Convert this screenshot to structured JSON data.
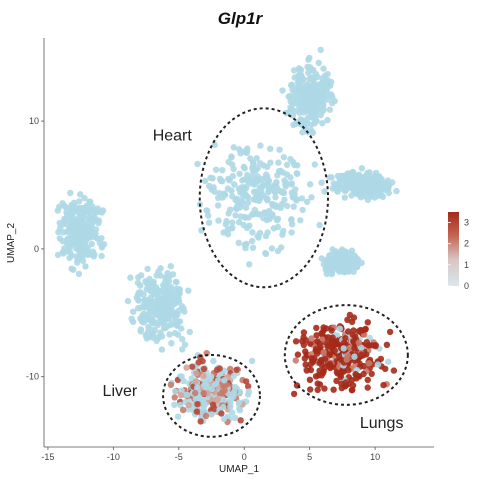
{
  "chart_data": {
    "type": "scatter",
    "title": "Glp1r",
    "xlabel": "UMAP_1",
    "ylabel": "UMAP_2",
    "xlim": [
      -15.3,
      14.5
    ],
    "ylim": [
      -15.5,
      16.5
    ],
    "x_ticks": [
      "-15",
      "-10",
      "-5",
      "0",
      "5",
      "10"
    ],
    "y_ticks": [
      "-10",
      "0",
      "10"
    ],
    "color_scale": {
      "min": 0,
      "max": 3.5,
      "ticks": [
        "3",
        "2",
        "1",
        "0"
      ],
      "low_color": "#add8e6",
      "high_color": "#a52a1a"
    },
    "point_color_low": "#aed8e6",
    "regions": [
      {
        "label": "Heart",
        "center": [
          1.5,
          4.0
        ],
        "rx": 4.9,
        "ry": 7.0
      },
      {
        "label": "Liver",
        "center": [
          -2.5,
          -11.5
        ],
        "rx": 3.7,
        "ry": 3.2
      },
      {
        "label": "Lungs",
        "center": [
          7.8,
          -8.3
        ],
        "rx": 4.7,
        "ry": 3.9
      }
    ],
    "clusters": [
      {
        "name": "",
        "center": [
          1.0,
          4.0
        ],
        "spread": [
          3.5,
          3.5
        ],
        "expression": "low"
      },
      {
        "name": "",
        "center": [
          5.0,
          12.0
        ],
        "spread": [
          1.5,
          2.5
        ],
        "expression": "low"
      },
      {
        "name": "",
        "center": [
          9.0,
          5.0
        ],
        "spread": [
          2.0,
          1.0
        ],
        "expression": "low"
      },
      {
        "name": "",
        "center": [
          -12.5,
          1.5
        ],
        "spread": [
          1.5,
          2.5
        ],
        "expression": "low"
      },
      {
        "name": "",
        "center": [
          -6.5,
          -4.5
        ],
        "spread": [
          2.0,
          2.5
        ],
        "expression": "low"
      },
      {
        "name": "",
        "center": [
          7.5,
          -1.0
        ],
        "spread": [
          1.2,
          0.8
        ],
        "expression": "low"
      },
      {
        "name": "",
        "center": [
          -2.5,
          -11.2
        ],
        "spread": [
          2.5,
          2.0
        ],
        "expression": "mixed"
      },
      {
        "name": "",
        "center": [
          7.5,
          -8.3
        ],
        "spread": [
          3.0,
          2.5
        ],
        "expression": "high"
      }
    ]
  }
}
